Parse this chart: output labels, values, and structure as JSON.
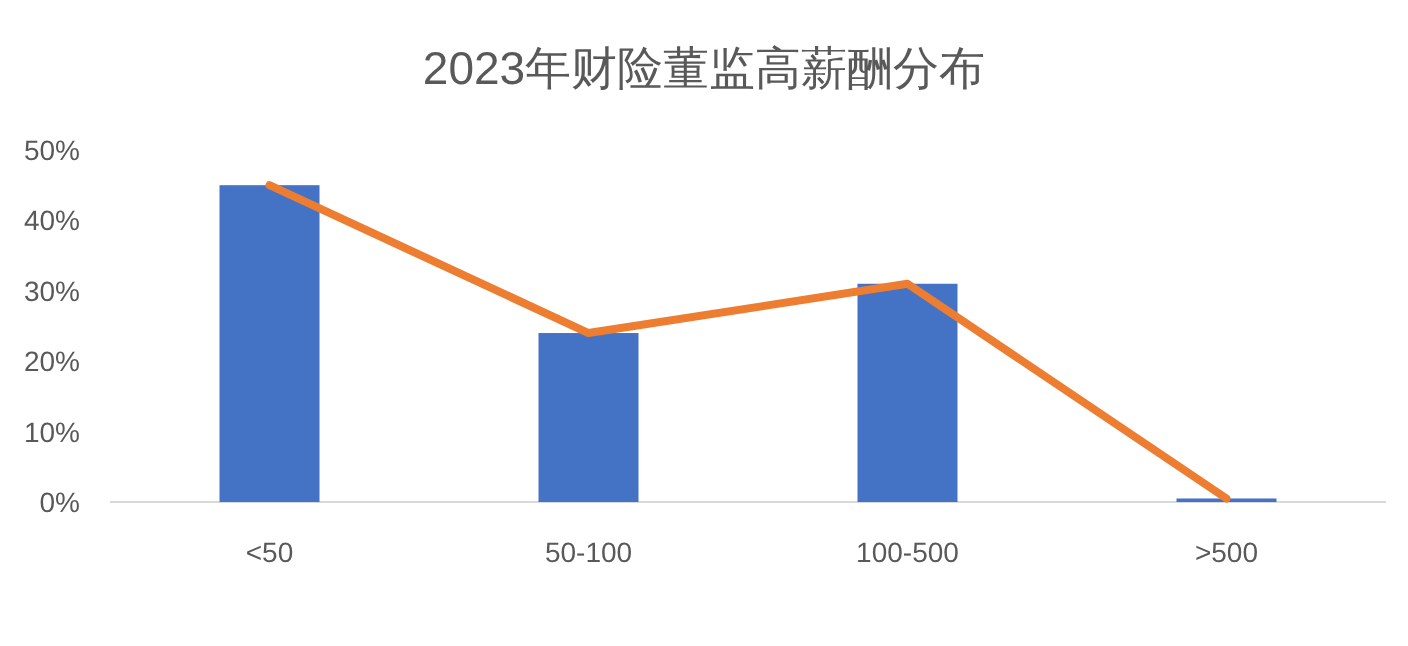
{
  "chart_data": {
    "type": "bar",
    "title": "2023年财险董监高薪酬分布",
    "categories": [
      "<50",
      "50-100",
      "100-500",
      ">500"
    ],
    "series": [
      {
        "type": "bar",
        "color": "#4472c4",
        "values": [
          45,
          24,
          31,
          0.5
        ]
      },
      {
        "type": "line",
        "color": "#ed7d31",
        "values": [
          45,
          24,
          31,
          0.5
        ]
      }
    ],
    "ylim": [
      0,
      50
    ],
    "yticks": [
      {
        "value": 0,
        "label": "0%"
      },
      {
        "value": 10,
        "label": "10%"
      },
      {
        "value": 20,
        "label": "20%"
      },
      {
        "value": 30,
        "label": "30%"
      },
      {
        "value": 40,
        "label": "40%"
      },
      {
        "value": 50,
        "label": "50%"
      }
    ],
    "marker": "none",
    "line_style": "solid"
  }
}
